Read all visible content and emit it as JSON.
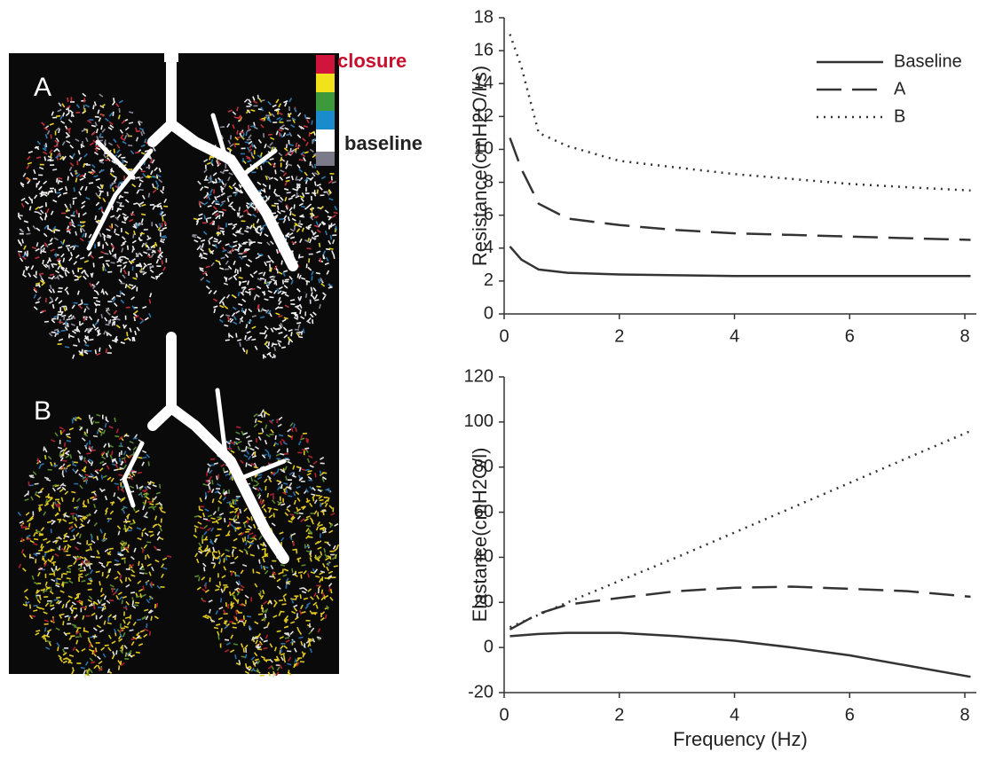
{
  "image": {
    "panel_labels": [
      "A",
      "B"
    ],
    "legend": [
      "closure",
      "baseline"
    ]
  },
  "chart_data": [
    {
      "type": "line",
      "ylabel": "Resistance(cmH2O/l/s)",
      "x": [
        0.1,
        0.3,
        0.6,
        1.1,
        2,
        3,
        4,
        5,
        6,
        7,
        8.1
      ],
      "xlim": [
        0,
        8.2
      ],
      "xticks": [
        0,
        2,
        4,
        6,
        8
      ],
      "ylim": [
        0,
        18
      ],
      "yticks": [
        0,
        2,
        4,
        6,
        8,
        10,
        12,
        14,
        16,
        18
      ],
      "legend": "upper right",
      "series": [
        {
          "name": "Baseline",
          "color": "#333333",
          "dash": "solid",
          "values": [
            4.1,
            3.3,
            2.7,
            2.5,
            2.4,
            2.35,
            2.3,
            2.3,
            2.3,
            2.3,
            2.3
          ]
        },
        {
          "name": "A",
          "color": "#333333",
          "dash": "dashed",
          "values": [
            10.7,
            8.8,
            6.7,
            5.8,
            5.4,
            5.1,
            4.9,
            4.8,
            4.7,
            4.6,
            4.5
          ]
        },
        {
          "name": "B",
          "color": "#333333",
          "dash": "dotted",
          "values": [
            17.0,
            15.0,
            11.0,
            10.2,
            9.3,
            8.9,
            8.5,
            8.2,
            7.9,
            7.7,
            7.5
          ]
        }
      ]
    },
    {
      "type": "line",
      "ylabel": "Elastance(cmH2O/l)",
      "xlabel": "Frequency (Hz)",
      "x": [
        0.1,
        0.6,
        1.1,
        2,
        3,
        4,
        5,
        6,
        7,
        8.1
      ],
      "xlim": [
        0,
        8.2
      ],
      "xticks": [
        0,
        2,
        4,
        6,
        8
      ],
      "ylim": [
        -20,
        120
      ],
      "yticks": [
        -20,
        0,
        20,
        40,
        60,
        80,
        100,
        120
      ],
      "series": [
        {
          "color": "#333333",
          "dash": "solid",
          "values": [
            5,
            6,
            6.5,
            6.5,
            5,
            3,
            0,
            -3.5,
            -8,
            -13
          ]
        },
        {
          "color": "#333333",
          "dash": "dashed",
          "values": [
            8,
            15,
            19,
            22,
            25,
            26.5,
            27,
            26,
            25,
            22.5
          ]
        },
        {
          "color": "#333333",
          "dash": "dotted",
          "values": [
            9,
            14.5,
            20,
            29.5,
            40,
            51,
            62,
            73,
            84,
            96
          ]
        }
      ]
    }
  ]
}
